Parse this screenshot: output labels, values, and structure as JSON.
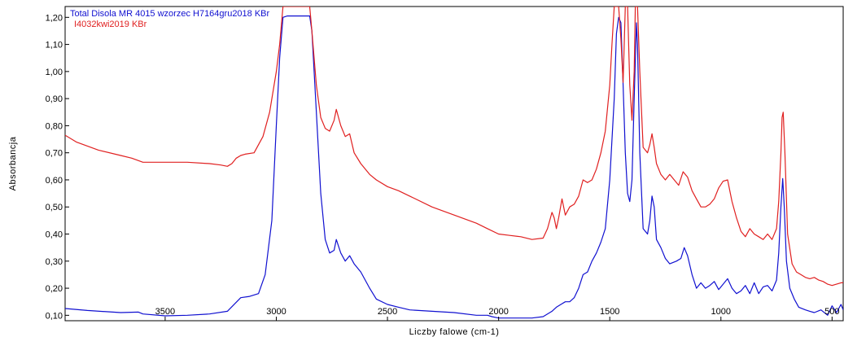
{
  "chart_data": {
    "type": "line",
    "title": "",
    "xlabel": "Liczby falowe (cm-1)",
    "ylabel": "Absorbancja",
    "xlim": [
      3950,
      450
    ],
    "ylim": [
      0.08,
      1.24
    ],
    "x_reversed": true,
    "grid": false,
    "legend_position": "top-left",
    "x_ticks": [
      3500,
      3000,
      2500,
      2000,
      1500,
      1000,
      500
    ],
    "x_tick_labels": [
      "3500",
      "3000",
      "2500",
      "2000",
      "1500",
      "1000",
      "500"
    ],
    "y_ticks": [
      0.1,
      0.2,
      0.3,
      0.4,
      0.5,
      0.6,
      0.7,
      0.8,
      0.9,
      1.0,
      1.1,
      1.2
    ],
    "y_tick_labels": [
      "0,10",
      "0,20",
      "0,30",
      "0,40",
      "0,50",
      "0,60",
      "0,70",
      "0,80",
      "0,90",
      "1,00",
      "1,10",
      "1,20"
    ],
    "series": [
      {
        "name": "Total Disola MR 4015 wzorzec H7164gru2018 KBr",
        "color": "#1010d0",
        "points": [
          [
            3950,
            0.125
          ],
          [
            3850,
            0.118
          ],
          [
            3700,
            0.11
          ],
          [
            3620,
            0.112
          ],
          [
            3600,
            0.105
          ],
          [
            3500,
            0.098
          ],
          [
            3400,
            0.1
          ],
          [
            3300,
            0.105
          ],
          [
            3220,
            0.115
          ],
          [
            3160,
            0.165
          ],
          [
            3120,
            0.17
          ],
          [
            3080,
            0.18
          ],
          [
            3050,
            0.25
          ],
          [
            3020,
            0.45
          ],
          [
            3000,
            0.8
          ],
          [
            2985,
            1.05
          ],
          [
            2970,
            1.2
          ],
          [
            2950,
            1.205
          ],
          [
            2900,
            1.205
          ],
          [
            2850,
            1.205
          ],
          [
            2840,
            1.15
          ],
          [
            2820,
            0.85
          ],
          [
            2800,
            0.55
          ],
          [
            2780,
            0.38
          ],
          [
            2760,
            0.33
          ],
          [
            2740,
            0.34
          ],
          [
            2730,
            0.38
          ],
          [
            2710,
            0.33
          ],
          [
            2690,
            0.3
          ],
          [
            2670,
            0.32
          ],
          [
            2650,
            0.29
          ],
          [
            2620,
            0.26
          ],
          [
            2580,
            0.2
          ],
          [
            2550,
            0.16
          ],
          [
            2500,
            0.14
          ],
          [
            2450,
            0.13
          ],
          [
            2400,
            0.12
          ],
          [
            2300,
            0.115
          ],
          [
            2200,
            0.11
          ],
          [
            2100,
            0.1
          ],
          [
            2050,
            0.1
          ],
          [
            2030,
            0.095
          ],
          [
            2000,
            0.09
          ],
          [
            1950,
            0.09
          ],
          [
            1900,
            0.09
          ],
          [
            1850,
            0.09
          ],
          [
            1800,
            0.095
          ],
          [
            1760,
            0.115
          ],
          [
            1740,
            0.13
          ],
          [
            1720,
            0.14
          ],
          [
            1700,
            0.15
          ],
          [
            1680,
            0.15
          ],
          [
            1660,
            0.165
          ],
          [
            1640,
            0.2
          ],
          [
            1620,
            0.25
          ],
          [
            1600,
            0.26
          ],
          [
            1580,
            0.3
          ],
          [
            1560,
            0.33
          ],
          [
            1540,
            0.37
          ],
          [
            1520,
            0.42
          ],
          [
            1500,
            0.6
          ],
          [
            1480,
            0.9
          ],
          [
            1470,
            1.14
          ],
          [
            1460,
            1.2
          ],
          [
            1450,
            1.18
          ],
          [
            1440,
            0.95
          ],
          [
            1430,
            0.7
          ],
          [
            1420,
            0.55
          ],
          [
            1410,
            0.52
          ],
          [
            1400,
            0.6
          ],
          [
            1390,
            0.9
          ],
          [
            1380,
            1.18
          ],
          [
            1375,
            1.1
          ],
          [
            1365,
            0.7
          ],
          [
            1350,
            0.42
          ],
          [
            1330,
            0.4
          ],
          [
            1320,
            0.45
          ],
          [
            1310,
            0.54
          ],
          [
            1300,
            0.5
          ],
          [
            1290,
            0.38
          ],
          [
            1270,
            0.35
          ],
          [
            1250,
            0.31
          ],
          [
            1230,
            0.29
          ],
          [
            1200,
            0.3
          ],
          [
            1180,
            0.31
          ],
          [
            1165,
            0.35
          ],
          [
            1150,
            0.32
          ],
          [
            1130,
            0.25
          ],
          [
            1110,
            0.2
          ],
          [
            1090,
            0.22
          ],
          [
            1070,
            0.2
          ],
          [
            1050,
            0.21
          ],
          [
            1030,
            0.225
          ],
          [
            1010,
            0.195
          ],
          [
            990,
            0.215
          ],
          [
            970,
            0.235
          ],
          [
            950,
            0.2
          ],
          [
            930,
            0.18
          ],
          [
            910,
            0.19
          ],
          [
            890,
            0.21
          ],
          [
            870,
            0.18
          ],
          [
            850,
            0.22
          ],
          [
            830,
            0.18
          ],
          [
            810,
            0.205
          ],
          [
            790,
            0.21
          ],
          [
            770,
            0.19
          ],
          [
            750,
            0.23
          ],
          [
            740,
            0.33
          ],
          [
            730,
            0.5
          ],
          [
            722,
            0.605
          ],
          [
            715,
            0.5
          ],
          [
            705,
            0.3
          ],
          [
            690,
            0.2
          ],
          [
            670,
            0.16
          ],
          [
            650,
            0.13
          ],
          [
            620,
            0.12
          ],
          [
            600,
            0.115
          ],
          [
            580,
            0.11
          ],
          [
            550,
            0.12
          ],
          [
            520,
            0.1
          ],
          [
            500,
            0.135
          ],
          [
            480,
            0.11
          ],
          [
            460,
            0.14
          ],
          [
            450,
            0.12
          ]
        ]
      },
      {
        "name": "I4032kwi2019 KBr",
        "color": "#e02020",
        "points": [
          [
            3950,
            0.765
          ],
          [
            3900,
            0.74
          ],
          [
            3800,
            0.71
          ],
          [
            3700,
            0.69
          ],
          [
            3650,
            0.68
          ],
          [
            3600,
            0.665
          ],
          [
            3500,
            0.665
          ],
          [
            3400,
            0.665
          ],
          [
            3300,
            0.66
          ],
          [
            3250,
            0.655
          ],
          [
            3220,
            0.65
          ],
          [
            3200,
            0.66
          ],
          [
            3180,
            0.68
          ],
          [
            3160,
            0.69
          ],
          [
            3140,
            0.695
          ],
          [
            3100,
            0.7
          ],
          [
            3060,
            0.76
          ],
          [
            3030,
            0.85
          ],
          [
            3000,
            1.0
          ],
          [
            2985,
            1.1
          ],
          [
            2970,
            1.24
          ],
          [
            2850,
            1.24
          ],
          [
            2840,
            1.15
          ],
          [
            2820,
            0.95
          ],
          [
            2800,
            0.83
          ],
          [
            2780,
            0.79
          ],
          [
            2760,
            0.78
          ],
          [
            2740,
            0.82
          ],
          [
            2730,
            0.86
          ],
          [
            2710,
            0.8
          ],
          [
            2690,
            0.76
          ],
          [
            2670,
            0.77
          ],
          [
            2650,
            0.7
          ],
          [
            2620,
            0.66
          ],
          [
            2580,
            0.62
          ],
          [
            2550,
            0.6
          ],
          [
            2500,
            0.575
          ],
          [
            2450,
            0.56
          ],
          [
            2400,
            0.54
          ],
          [
            2300,
            0.5
          ],
          [
            2200,
            0.47
          ],
          [
            2100,
            0.44
          ],
          [
            2050,
            0.42
          ],
          [
            2000,
            0.4
          ],
          [
            1950,
            0.395
          ],
          [
            1900,
            0.39
          ],
          [
            1850,
            0.38
          ],
          [
            1800,
            0.385
          ],
          [
            1780,
            0.42
          ],
          [
            1760,
            0.48
          ],
          [
            1750,
            0.46
          ],
          [
            1740,
            0.42
          ],
          [
            1730,
            0.46
          ],
          [
            1715,
            0.53
          ],
          [
            1700,
            0.47
          ],
          [
            1680,
            0.5
          ],
          [
            1660,
            0.51
          ],
          [
            1640,
            0.54
          ],
          [
            1620,
            0.6
          ],
          [
            1600,
            0.59
          ],
          [
            1580,
            0.6
          ],
          [
            1560,
            0.64
          ],
          [
            1540,
            0.7
          ],
          [
            1520,
            0.78
          ],
          [
            1500,
            0.95
          ],
          [
            1490,
            1.1
          ],
          [
            1480,
            1.24
          ],
          [
            1470,
            1.24
          ],
          [
            1460,
            1.24
          ],
          [
            1450,
            1.12
          ],
          [
            1440,
            0.96
          ],
          [
            1430,
            1.24
          ],
          [
            1420,
            1.24
          ],
          [
            1410,
            0.95
          ],
          [
            1400,
            0.82
          ],
          [
            1390,
            1.0
          ],
          [
            1385,
            1.24
          ],
          [
            1375,
            1.24
          ],
          [
            1365,
            1.0
          ],
          [
            1350,
            0.72
          ],
          [
            1330,
            0.7
          ],
          [
            1320,
            0.73
          ],
          [
            1310,
            0.77
          ],
          [
            1300,
            0.72
          ],
          [
            1290,
            0.66
          ],
          [
            1270,
            0.62
          ],
          [
            1250,
            0.6
          ],
          [
            1230,
            0.62
          ],
          [
            1210,
            0.6
          ],
          [
            1190,
            0.58
          ],
          [
            1170,
            0.63
          ],
          [
            1150,
            0.61
          ],
          [
            1130,
            0.56
          ],
          [
            1110,
            0.53
          ],
          [
            1090,
            0.5
          ],
          [
            1070,
            0.5
          ],
          [
            1050,
            0.51
          ],
          [
            1030,
            0.53
          ],
          [
            1010,
            0.57
          ],
          [
            990,
            0.595
          ],
          [
            970,
            0.6
          ],
          [
            950,
            0.52
          ],
          [
            930,
            0.46
          ],
          [
            910,
            0.41
          ],
          [
            890,
            0.39
          ],
          [
            870,
            0.42
          ],
          [
            850,
            0.4
          ],
          [
            830,
            0.39
          ],
          [
            810,
            0.38
          ],
          [
            790,
            0.4
          ],
          [
            770,
            0.38
          ],
          [
            750,
            0.42
          ],
          [
            740,
            0.52
          ],
          [
            730,
            0.7
          ],
          [
            725,
            0.83
          ],
          [
            720,
            0.85
          ],
          [
            712,
            0.7
          ],
          [
            700,
            0.4
          ],
          [
            680,
            0.29
          ],
          [
            660,
            0.26
          ],
          [
            640,
            0.25
          ],
          [
            620,
            0.24
          ],
          [
            600,
            0.235
          ],
          [
            580,
            0.24
          ],
          [
            560,
            0.23
          ],
          [
            540,
            0.225
          ],
          [
            520,
            0.215
          ],
          [
            500,
            0.21
          ],
          [
            480,
            0.215
          ],
          [
            460,
            0.22
          ],
          [
            450,
            0.22
          ]
        ]
      }
    ]
  }
}
